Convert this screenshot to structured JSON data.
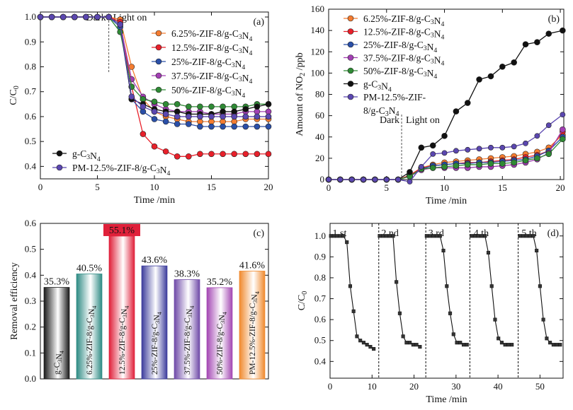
{
  "chart_data": [
    {
      "id": "a",
      "type": "line",
      "panel_label": "(a)",
      "xlabel": "Time /min",
      "ylabel": "C/C0",
      "xlim": [
        0,
        20
      ],
      "ylim": [
        0.35,
        1.02
      ],
      "xticks": [
        0,
        5,
        10,
        15,
        20
      ],
      "yticks": [
        0.4,
        0.5,
        0.6,
        0.7,
        0.8,
        0.9,
        1.0
      ],
      "ytick_labels": [
        "0.4",
        "0.5",
        "0.6",
        "0.7",
        "0.8",
        "0.9",
        "1.0"
      ],
      "x": [
        0,
        1,
        2,
        3,
        4,
        5,
        6,
        7,
        8,
        9,
        10,
        11,
        12,
        13,
        14,
        15,
        16,
        17,
        18,
        19,
        20
      ],
      "annotations": {
        "dark": "Dark",
        "light": "Light on",
        "switch_x": 6
      },
      "legend_right": [
        "s625",
        "s125",
        "s25",
        "s375",
        "s50"
      ],
      "legend_left": [
        "g",
        "pm"
      ],
      "series": [
        {
          "key": "s625",
          "name": "6.25%-ZIF-8/g-C3N4",
          "color": "#f47c30",
          "values": [
            1,
            1,
            1,
            1,
            1,
            1,
            1,
            0.99,
            0.8,
            0.67,
            0.62,
            0.6,
            0.59,
            0.58,
            0.58,
            0.58,
            0.58,
            0.58,
            0.59,
            0.59,
            0.59
          ]
        },
        {
          "key": "s125",
          "name": "12.5%-ZIF-8/g-C3N4",
          "color": "#e8202a",
          "values": [
            1,
            1,
            1,
            1,
            1,
            1,
            1,
            0.98,
            0.72,
            0.53,
            0.48,
            0.46,
            0.44,
            0.44,
            0.45,
            0.45,
            0.45,
            0.45,
            0.45,
            0.45,
            0.45
          ]
        },
        {
          "key": "s25",
          "name": "25%-ZIF-8/g-C3N4",
          "color": "#2a4fa8",
          "values": [
            1,
            1,
            1,
            1,
            1,
            1,
            1,
            0.96,
            0.67,
            0.62,
            0.59,
            0.58,
            0.57,
            0.57,
            0.56,
            0.56,
            0.56,
            0.56,
            0.56,
            0.56,
            0.56
          ]
        },
        {
          "key": "s375",
          "name": "37.5%-ZIF-8/g-C3N4",
          "color": "#a23fb3",
          "values": [
            1,
            1,
            1,
            1,
            1,
            1,
            1,
            0.97,
            0.75,
            0.68,
            0.65,
            0.63,
            0.62,
            0.62,
            0.62,
            0.61,
            0.61,
            0.61,
            0.62,
            0.62,
            0.62
          ]
        },
        {
          "key": "s50",
          "name": "50%-ZIF-8/g-C3N4",
          "color": "#2f8a35",
          "values": [
            1,
            1,
            1,
            1,
            1,
            1,
            1,
            0.94,
            0.72,
            0.67,
            0.66,
            0.65,
            0.65,
            0.64,
            0.64,
            0.64,
            0.64,
            0.64,
            0.64,
            0.65,
            0.65
          ]
        },
        {
          "key": "g",
          "name": "g-C3N4",
          "color": "#111111",
          "values": [
            1,
            1,
            1,
            1,
            1,
            1,
            1,
            0.97,
            0.67,
            0.65,
            0.63,
            0.62,
            0.62,
            0.61,
            0.61,
            0.61,
            0.62,
            0.62,
            0.63,
            0.64,
            0.65
          ]
        },
        {
          "key": "pm",
          "name": "PM-12.5%-ZIF-8/g-C3N4",
          "color": "#5b47b0",
          "values": [
            1,
            1,
            1,
            1,
            1,
            1,
            1,
            0.97,
            0.68,
            0.64,
            0.62,
            0.61,
            0.6,
            0.6,
            0.6,
            0.6,
            0.6,
            0.6,
            0.6,
            0.6,
            0.6
          ]
        }
      ]
    },
    {
      "id": "b",
      "type": "line",
      "panel_label": "(b)",
      "xlabel": "Time /min",
      "ylabel": "Amount of NO2 /ppb",
      "xlim": [
        0,
        20.3
      ],
      "ylim": [
        0,
        160
      ],
      "xticks": [
        0,
        5,
        10,
        15,
        20
      ],
      "yticks": [
        0,
        20,
        40,
        60,
        80,
        100,
        120,
        140,
        160
      ],
      "x": [
        0,
        1,
        2,
        3,
        4,
        5,
        6,
        7,
        8,
        9,
        10,
        11,
        12,
        13,
        14,
        15,
        16,
        17,
        18,
        19,
        20.2
      ],
      "annotations": {
        "dark": "Dark",
        "light": "Light on",
        "switch_x": 6.3
      },
      "series": [
        {
          "key": "s625",
          "name": "6.25%-ZIF-8/g-C3N4",
          "color": "#f47c30",
          "values": [
            0,
            0,
            0,
            0,
            0,
            0,
            0,
            4,
            11,
            14,
            16,
            17,
            18,
            19,
            20,
            21,
            22,
            24,
            26,
            30,
            42
          ]
        },
        {
          "key": "s125",
          "name": "12.5%-ZIF-8/g-C3N4",
          "color": "#e8202a",
          "values": [
            0,
            0,
            0,
            0,
            0,
            0,
            0,
            4,
            11,
            13,
            14,
            15,
            16,
            16,
            17,
            18,
            19,
            21,
            23,
            27,
            45
          ]
        },
        {
          "key": "s25",
          "name": "25%-ZIF-8/g-C3N4",
          "color": "#2a4fa8",
          "values": [
            0,
            0,
            0,
            0,
            0,
            0,
            0,
            3,
            10,
            13,
            14,
            15,
            15,
            16,
            16,
            17,
            18,
            19,
            22,
            27,
            40
          ]
        },
        {
          "key": "s375",
          "name": "37.5%-ZIF-8/g-C3N4",
          "color": "#a23fb3",
          "values": [
            0,
            0,
            0,
            0,
            0,
            0,
            0,
            3,
            9,
            11,
            11,
            11,
            11,
            12,
            12,
            13,
            14,
            16,
            19,
            25,
            47
          ]
        },
        {
          "key": "s50",
          "name": "50%-ZIF-8/g-C3N4",
          "color": "#2f8a35",
          "values": [
            0,
            0,
            0,
            0,
            0,
            0,
            0,
            3,
            10,
            11,
            12,
            13,
            14,
            14,
            15,
            15,
            16,
            18,
            20,
            24,
            38
          ]
        },
        {
          "key": "g",
          "name": "g-C3N4",
          "color": "#111111",
          "values": [
            0,
            0,
            0,
            0,
            0,
            0,
            0,
            7,
            30,
            32,
            41,
            64,
            72,
            94,
            97,
            106,
            110,
            127,
            129,
            137,
            140
          ]
        },
        {
          "key": "pm",
          "name": "PM-12.5%-ZIF-8/g-C3N4",
          "color": "#5b47b0",
          "values": [
            0,
            0,
            0,
            0,
            0,
            0,
            0,
            -2,
            12,
            24,
            25,
            27,
            28,
            29,
            30,
            30,
            31,
            34,
            41,
            51,
            61
          ]
        }
      ]
    },
    {
      "id": "c",
      "type": "bar",
      "panel_label": "(c)",
      "ylabel": "Removal efficiency",
      "ylim": [
        0,
        0.6
      ],
      "yticks": [
        0,
        0.1,
        0.2,
        0.3,
        0.4,
        0.5,
        0.6
      ],
      "ytick_labels": [
        "0.0",
        "0.1",
        "0.2",
        "0.3",
        "0.4",
        "0.5",
        "0.6"
      ],
      "categories": [
        "g-C3N4",
        "6.25%-ZIF-8/g-C3N4",
        "12.5%-ZIF-8/g-C3N4",
        "25%-ZIF-8/g-C3N4",
        "37.5%-ZIF-8/g-C3N4",
        "50%-ZIF-8/g-C3N4",
        "PM-12.5%-ZIF-8/g-C3N4"
      ],
      "values": [
        0.353,
        0.405,
        0.551,
        0.436,
        0.383,
        0.352,
        0.416
      ],
      "value_labels": [
        "35.3%",
        "40.5%",
        "55.1%",
        "43.6%",
        "38.3%",
        "35.2%",
        "41.6%"
      ],
      "colors": [
        "#1a1a1a",
        "#2e8b84",
        "#e0203a",
        "#3c3c9c",
        "#6f4aa8",
        "#a347b3",
        "#f08a2e"
      ],
      "label_colors": [
        "#111111",
        "#2e8b84",
        "#ffffff",
        "#3c3c9c",
        "#6f4aa8",
        "#a347b3",
        "#f08a2e"
      ]
    },
    {
      "id": "d",
      "type": "line",
      "panel_label": "(d)",
      "xlabel": "Time /min",
      "ylabel": "C/C0",
      "xlim": [
        0,
        55.5
      ],
      "ylim": [
        0.32,
        1.06
      ],
      "xticks": [
        0,
        10,
        20,
        30,
        40,
        50
      ],
      "yticks": [
        0.4,
        0.5,
        0.6,
        0.7,
        0.8,
        0.9,
        1.0
      ],
      "ytick_labels": [
        "0.4",
        "0.5",
        "0.6",
        "0.7",
        "0.8",
        "0.9",
        "1.0"
      ],
      "cycle_labels": [
        "1 st",
        "2 nd",
        "3 rd",
        "4 th",
        "5 th"
      ],
      "cycle_label_x": [
        0.6,
        12.2,
        23.4,
        34.2,
        45.6
      ],
      "dividers": [
        11.6,
        22.8,
        33.3,
        44.8
      ],
      "color": "#111111",
      "series": [
        {
          "name": "cycle-1",
          "x": [
            0.2,
            0.9,
            1.6,
            2.4,
            3.2,
            4.0,
            4.8,
            5.6,
            6.4,
            7.2,
            8.0,
            8.8,
            9.6,
            10.4
          ],
          "values": [
            1,
            1,
            1,
            1,
            1,
            0.97,
            0.76,
            0.64,
            0.52,
            0.5,
            0.49,
            0.48,
            0.47,
            0.46
          ]
        },
        {
          "name": "cycle-2",
          "x": [
            11.8,
            12.6,
            13.4,
            14.2,
            15.0,
            15.8,
            16.6,
            17.4,
            18.2,
            19.0,
            19.8,
            20.6,
            21.4
          ],
          "values": [
            1,
            1,
            1,
            1,
            1,
            0.78,
            0.63,
            0.52,
            0.49,
            0.49,
            0.48,
            0.48,
            0.47
          ]
        },
        {
          "name": "cycle-3",
          "x": [
            23.0,
            23.8,
            24.6,
            25.4,
            26.2,
            27.0,
            27.8,
            28.6,
            29.4,
            30.2,
            31.0,
            31.8,
            32.6
          ],
          "values": [
            1,
            1,
            1,
            1,
            1,
            0.93,
            0.76,
            0.63,
            0.53,
            0.49,
            0.49,
            0.48,
            0.48
          ]
        },
        {
          "name": "cycle-4",
          "x": [
            33.7,
            34.5,
            35.3,
            36.1,
            36.9,
            37.7,
            38.5,
            39.3,
            40.1,
            40.9,
            41.7,
            42.5,
            43.3
          ],
          "values": [
            1,
            1,
            1,
            1,
            1,
            0.92,
            0.76,
            0.6,
            0.51,
            0.49,
            0.48,
            0.48,
            0.48
          ]
        },
        {
          "name": "cycle-5",
          "x": [
            45.2,
            46.0,
            46.8,
            47.6,
            48.4,
            49.2,
            50.0,
            50.8,
            51.6,
            52.4,
            53.2,
            54.0,
            54.8
          ],
          "values": [
            1,
            1,
            1,
            1,
            1,
            0.93,
            0.76,
            0.6,
            0.51,
            0.49,
            0.48,
            0.48,
            0.48
          ]
        }
      ]
    }
  ]
}
